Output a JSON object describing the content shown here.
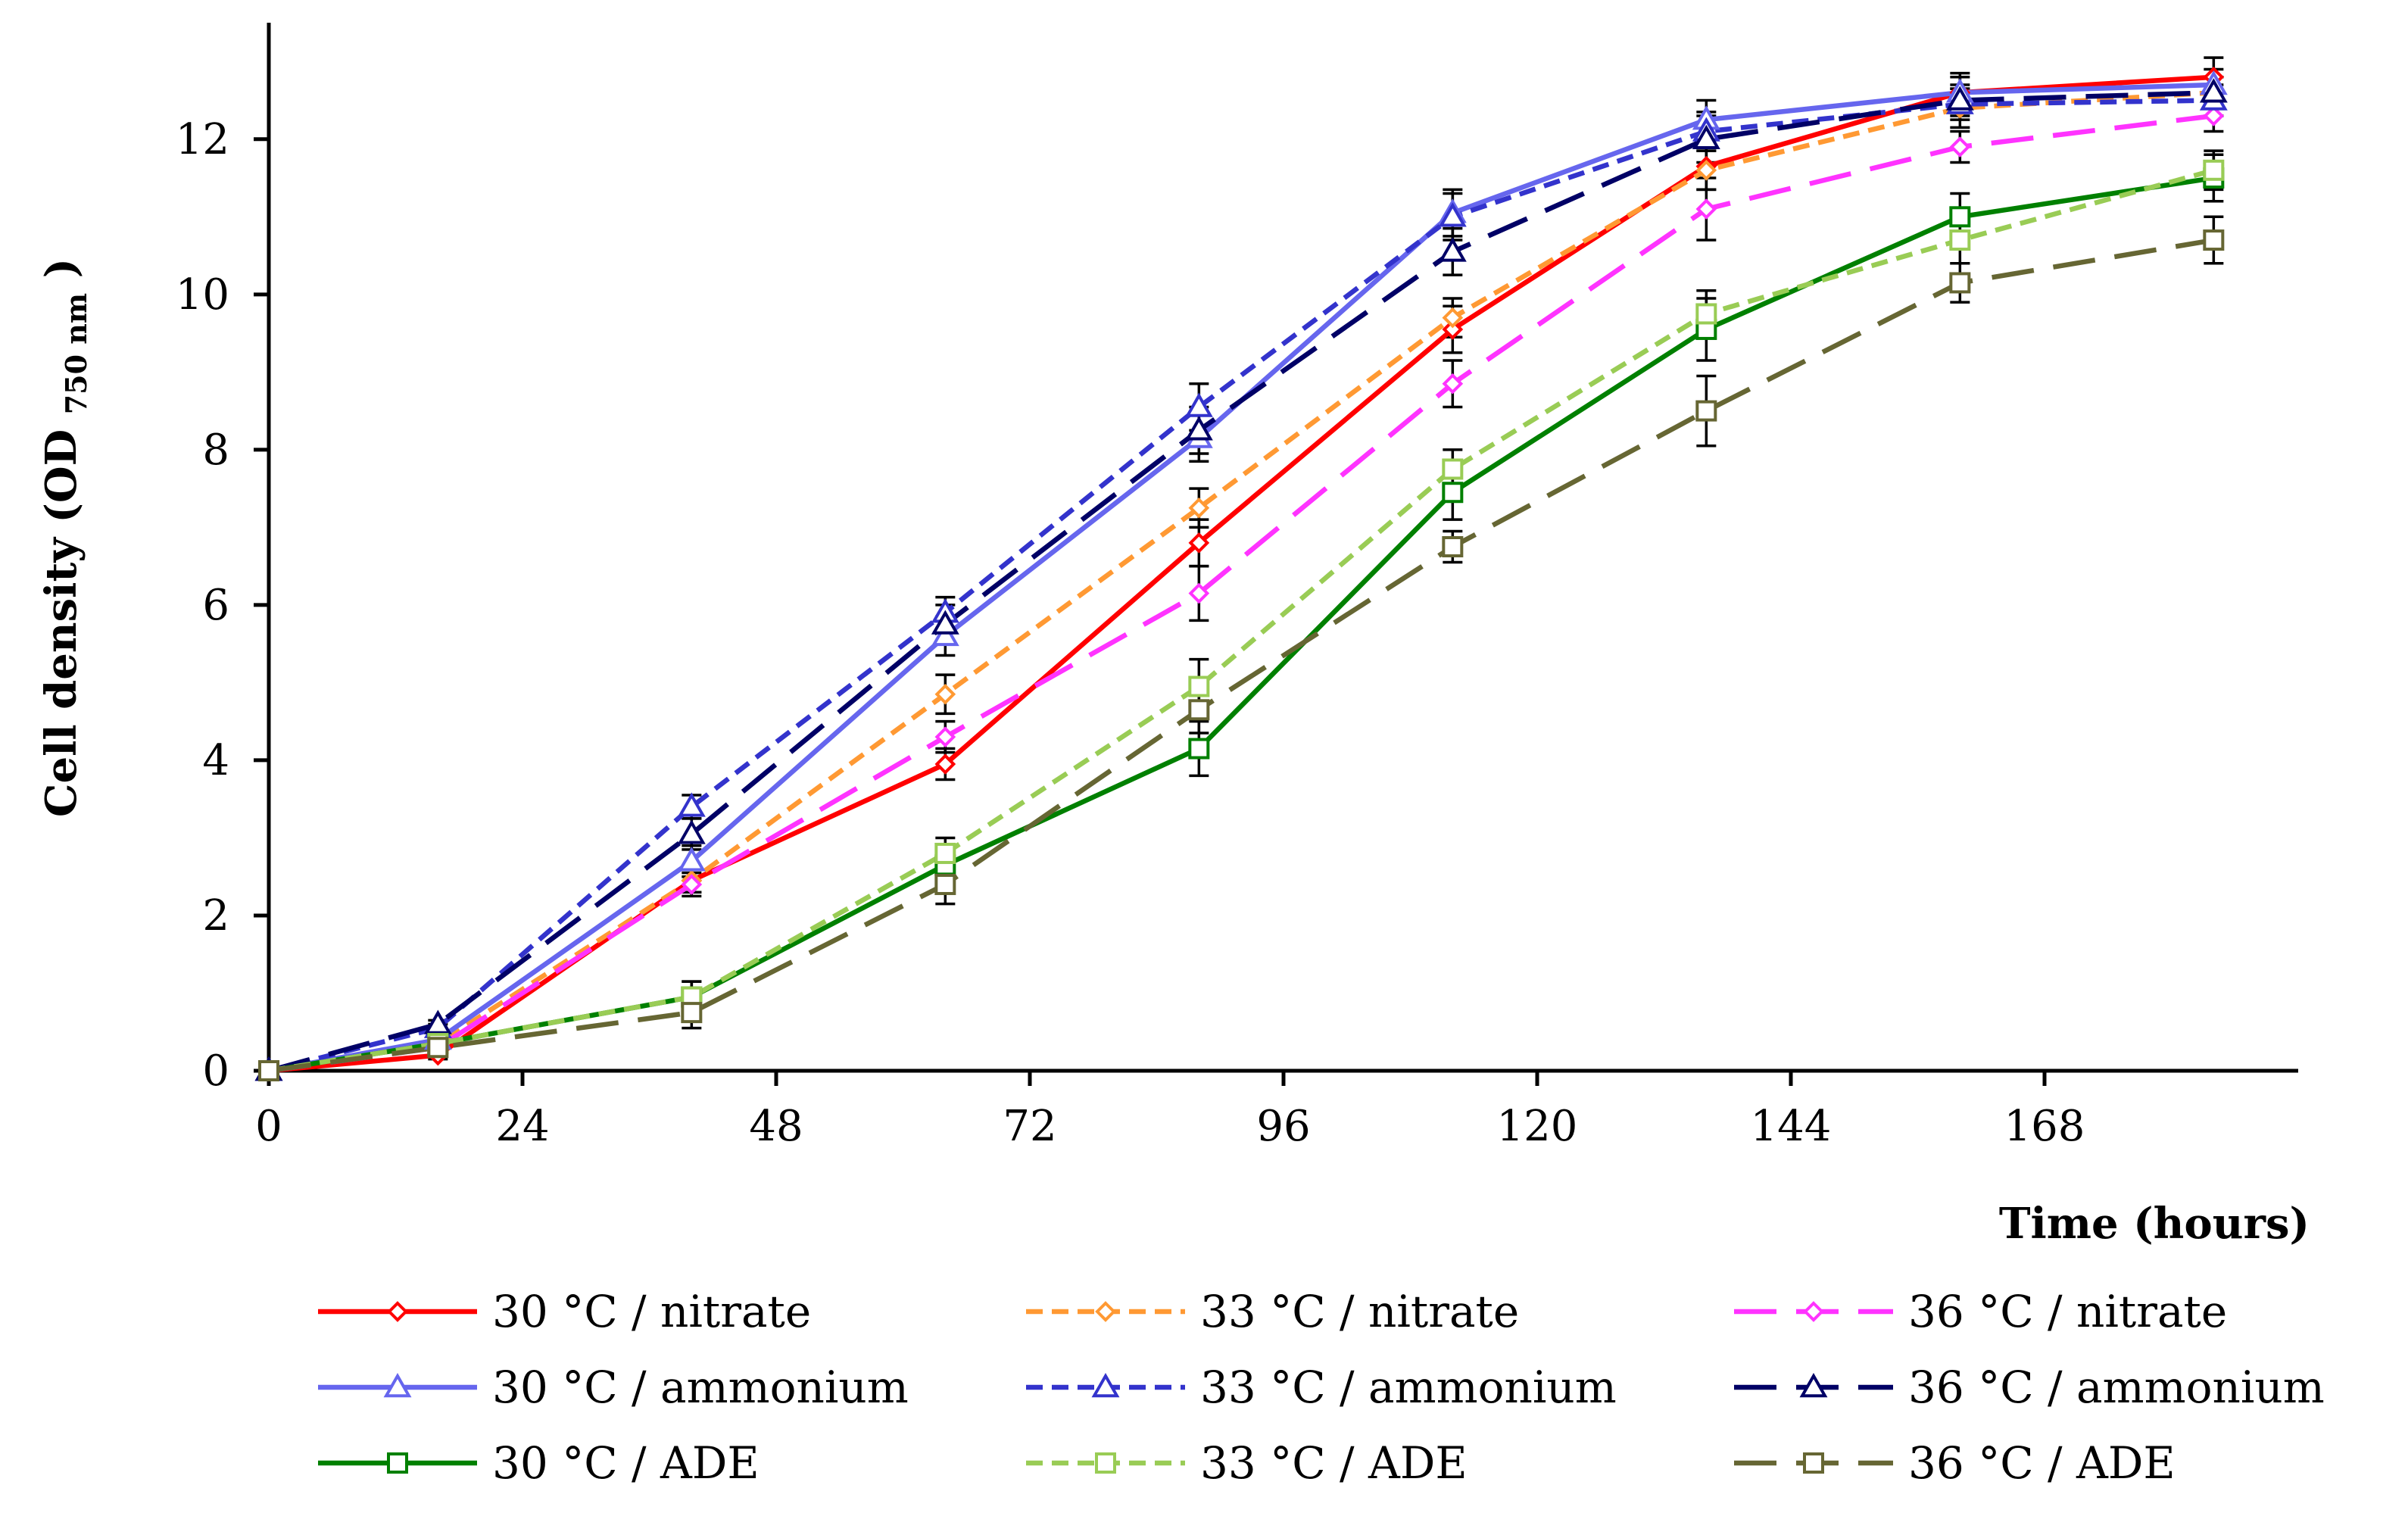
{
  "chart_data": {
    "type": "line",
    "title": "",
    "xlabel": "Time (hours)",
    "ylabel": "Cell density (OD",
    "ylabel_sub": "750 nm",
    "ylabel_close": ")",
    "xlim": [
      0,
      192
    ],
    "ylim": [
      0,
      13.5
    ],
    "xticks": [
      0,
      24,
      48,
      72,
      96,
      120,
      144,
      168
    ],
    "yticks": [
      0,
      2,
      4,
      6,
      8,
      10,
      12
    ],
    "grid": false,
    "legend": "bottom",
    "x": [
      0,
      16,
      40,
      64,
      88,
      112,
      136,
      160,
      184
    ],
    "series": [
      {
        "name": "30 °C / nitrate",
        "color": "#ff0000",
        "dash": "solid",
        "marker": "diamond",
        "values": [
          0,
          0.2,
          2.45,
          3.95,
          6.8,
          9.55,
          11.65,
          12.6,
          12.8
        ],
        "errors": [
          0,
          0.05,
          0.15,
          0.2,
          0.3,
          0.3,
          0.3,
          0.2,
          0.25
        ]
      },
      {
        "name": "33 °C / nitrate",
        "color": "#ff9933",
        "dash": "short",
        "marker": "diamond",
        "values": [
          0,
          0.35,
          2.45,
          4.85,
          7.25,
          9.7,
          11.6,
          12.4,
          12.6
        ],
        "errors": [
          0,
          0.05,
          0.15,
          0.25,
          0.25,
          0.25,
          0.25,
          0.25,
          0.2
        ]
      },
      {
        "name": "36 °C / nitrate",
        "color": "#ff33ff",
        "dash": "long",
        "marker": "diamond",
        "values": [
          0,
          0.3,
          2.4,
          4.3,
          6.15,
          8.85,
          11.1,
          11.9,
          12.3
        ],
        "errors": [
          0,
          0.05,
          0.15,
          0.2,
          0.35,
          0.3,
          0.4,
          0.2,
          0.2
        ]
      },
      {
        "name": "30 °C / ammonium",
        "color": "#6666ee",
        "dash": "solid",
        "marker": "triangle",
        "values": [
          0,
          0.4,
          2.7,
          5.6,
          8.15,
          11.05,
          12.25,
          12.6,
          12.7
        ],
        "errors": [
          0,
          0.05,
          0.2,
          0.25,
          0.3,
          0.3,
          0.25,
          0.25,
          0.2
        ]
      },
      {
        "name": "33 °C / ammonium",
        "color": "#3333cc",
        "dash": "short",
        "marker": "triangle",
        "values": [
          0,
          0.55,
          3.4,
          5.9,
          8.55,
          11.0,
          12.1,
          12.45,
          12.5
        ],
        "errors": [
          0,
          0.05,
          0.15,
          0.2,
          0.3,
          0.3,
          0.25,
          0.2,
          0.2
        ]
      },
      {
        "name": "36 °C / ammonium",
        "color": "#000066",
        "dash": "long",
        "marker": "triangle",
        "values": [
          0,
          0.6,
          3.05,
          5.75,
          8.25,
          10.55,
          12.0,
          12.5,
          12.6
        ],
        "errors": [
          0,
          0.05,
          0.2,
          0.25,
          0.3,
          0.3,
          0.3,
          0.2,
          0.2
        ]
      },
      {
        "name": "30 °C / ADE",
        "color": "#008000",
        "dash": "solid",
        "marker": "square",
        "values": [
          0,
          0.35,
          0.95,
          2.65,
          4.15,
          7.45,
          9.55,
          11.0,
          11.5
        ],
        "errors": [
          0,
          0.05,
          0.2,
          0.25,
          0.35,
          0.35,
          0.4,
          0.3,
          0.3
        ]
      },
      {
        "name": "33 °C / ADE",
        "color": "#99cc55",
        "dash": "short",
        "marker": "square",
        "values": [
          0,
          0.35,
          0.95,
          2.8,
          4.95,
          7.75,
          9.75,
          10.7,
          11.6
        ],
        "errors": [
          0,
          0.05,
          0.2,
          0.2,
          0.35,
          0.25,
          0.3,
          0.3,
          0.25
        ]
      },
      {
        "name": "36 °C / ADE",
        "color": "#666633",
        "dash": "long",
        "marker": "square",
        "values": [
          0,
          0.3,
          0.75,
          2.4,
          4.65,
          6.75,
          8.5,
          10.15,
          10.7
        ],
        "errors": [
          0,
          0.05,
          0.2,
          0.25,
          0.3,
          0.2,
          0.45,
          0.25,
          0.3
        ]
      }
    ]
  }
}
